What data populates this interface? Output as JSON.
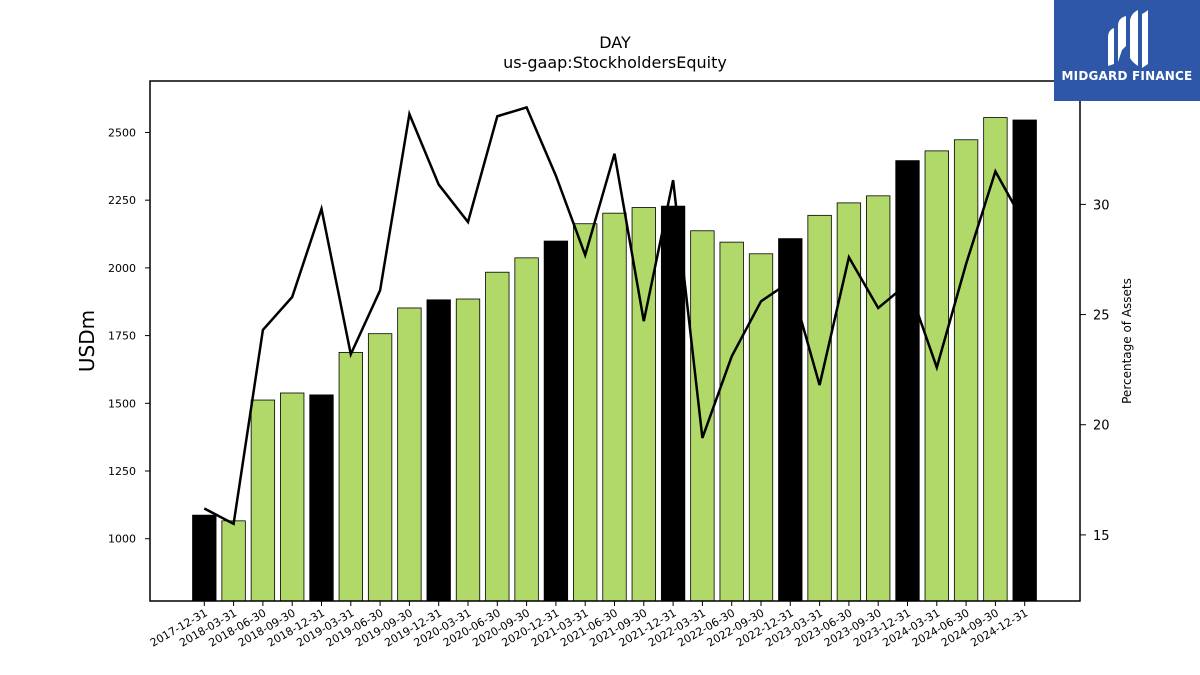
{
  "logo": {
    "text": "MIDGARD FINANCE",
    "color": "#2f57a8"
  },
  "chart_data": {
    "type": "bar",
    "title": "DAY",
    "subtitle": "us-gaap:StockholdersEquity",
    "ylabel": "USDm",
    "y2label": "Percentage of Assets",
    "ylim": [
      770,
      2690
    ],
    "y2lim": [
      12.0,
      35.6
    ],
    "yticks": [
      1000,
      1250,
      1500,
      1750,
      2000,
      2250,
      2500
    ],
    "y2ticks": [
      15,
      20,
      25,
      30
    ],
    "grid": false,
    "categories": [
      "2017-12-31",
      "2018-03-31",
      "2018-06-30",
      "2018-09-30",
      "2018-12-31",
      "2019-03-31",
      "2019-06-30",
      "2019-09-30",
      "2019-12-31",
      "2020-03-31",
      "2020-06-30",
      "2020-09-30",
      "2020-12-31",
      "2021-03-31",
      "2021-06-30",
      "2021-09-30",
      "2021-12-31",
      "2022-03-31",
      "2022-06-30",
      "2022-09-30",
      "2022-12-31",
      "2023-03-31",
      "2023-06-30",
      "2023-09-30",
      "2023-12-31",
      "2024-03-31",
      "2024-06-30",
      "2024-09-30",
      "2024-12-31"
    ],
    "series": [
      {
        "type": "bar",
        "axis": "left",
        "values": [
          1087,
          1066,
          1512,
          1538,
          1531,
          1688,
          1757,
          1852,
          1882,
          1885,
          1984,
          2037,
          2099,
          2163,
          2202,
          2223,
          2228,
          2137,
          2095,
          2052,
          2108,
          2194,
          2240,
          2266,
          2396,
          2432,
          2473,
          2555,
          2546
        ],
        "year_end_color": "#000000",
        "quarter_color": "#b0d96a"
      },
      {
        "type": "line",
        "axis": "right",
        "color": "#000000",
        "values": [
          16.2,
          15.5,
          24.3,
          25.8,
          29.8,
          23.2,
          26.1,
          34.1,
          30.9,
          29.2,
          34.0,
          34.4,
          31.3,
          27.7,
          32.3,
          24.7,
          31.1,
          19.4,
          23.1,
          25.6,
          26.5,
          21.8,
          27.6,
          25.3,
          26.4,
          22.6,
          27.3,
          31.5,
          29.1
        ]
      }
    ]
  }
}
